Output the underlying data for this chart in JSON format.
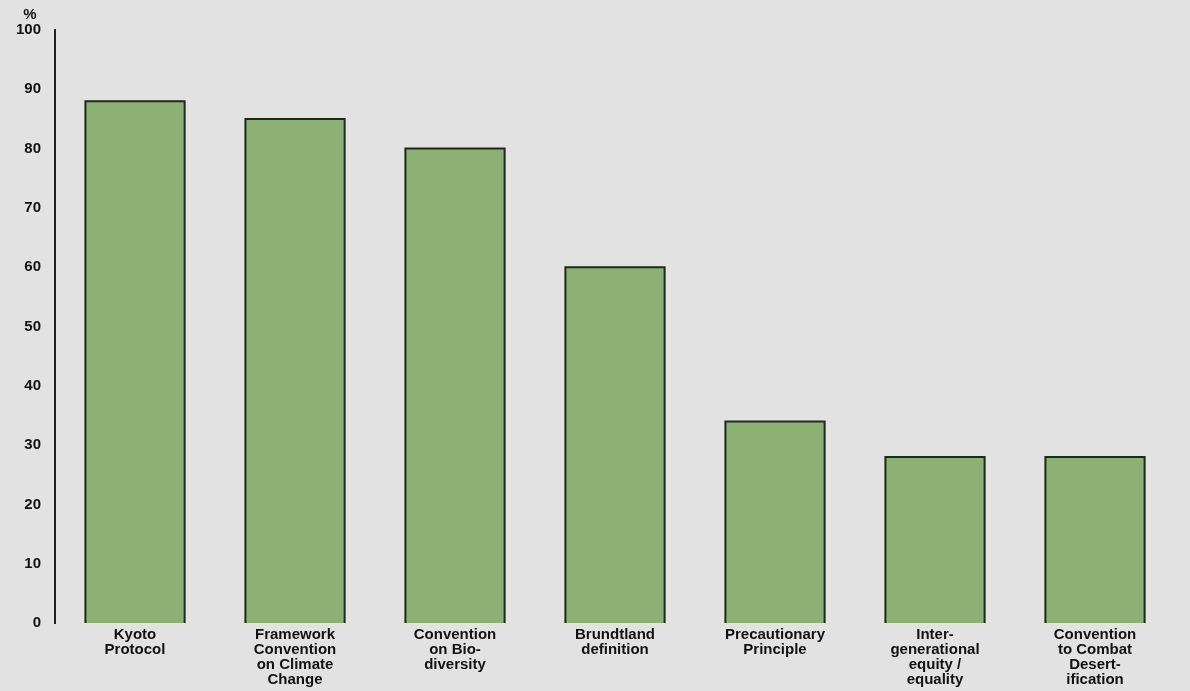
{
  "chart_data": {
    "type": "bar",
    "ylabel": "%",
    "categories": [
      "Kyoto\nProtocol",
      "Framework\nConvention\non Climate\nChange",
      "Convention\non Bio-\ndiversity",
      "Brundtland\ndefinition",
      "Precautionary\nPrinciple",
      "Inter-\ngenerational\nequity /\nequality",
      "Convention\nto Combat\nDesert-\nification"
    ],
    "values": [
      88,
      85,
      80,
      60,
      34,
      28,
      28
    ],
    "color": "#8db174",
    "ylim": [
      0,
      100
    ],
    "yticks": [
      0,
      10,
      20,
      30,
      40,
      50,
      60,
      70,
      80,
      90,
      100
    ],
    "grid": false,
    "legend": false
  }
}
